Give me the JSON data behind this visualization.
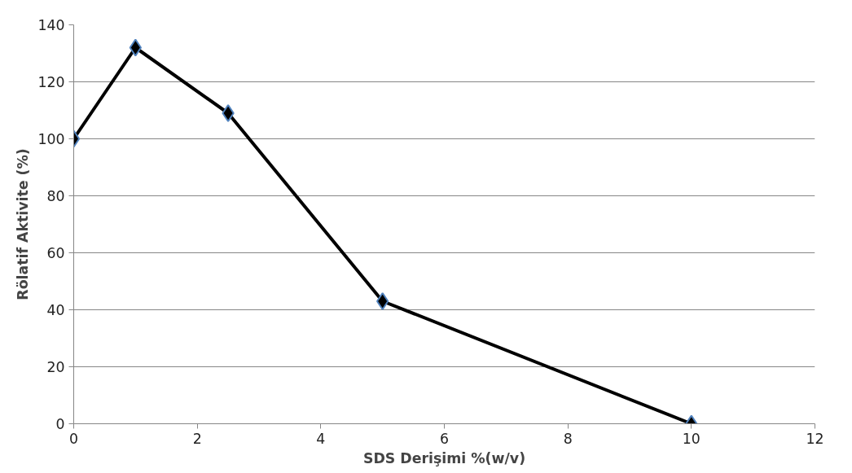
{
  "chart_data": {
    "type": "line",
    "xlabel": "SDS Derişimi %(w/v)",
    "ylabel": "Rölatif Aktivite (%)",
    "x": [
      0,
      1,
      2.5,
      5,
      10
    ],
    "series": [
      {
        "color": "#000000",
        "values": [
          100,
          132,
          109,
          43,
          0
        ]
      }
    ],
    "xlim": [
      0,
      12
    ],
    "xticks": [
      0,
      2,
      4,
      6,
      8,
      10,
      12
    ],
    "ylim": [
      0,
      140
    ],
    "yticks": [
      0,
      20,
      40,
      60,
      80,
      100,
      120,
      140
    ],
    "grid": "y",
    "marker": "diamond",
    "line_style": "solid"
  }
}
